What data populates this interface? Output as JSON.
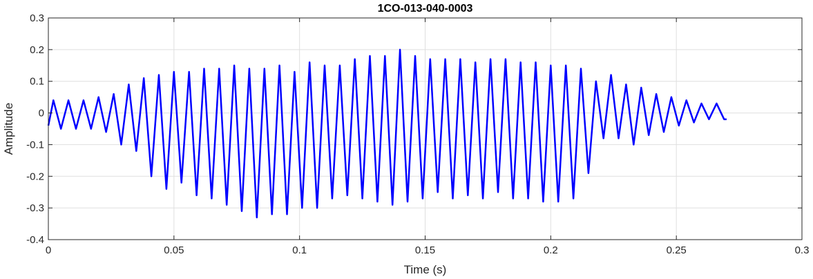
{
  "chart_data": {
    "type": "line",
    "title": "1CO-013-040-0003",
    "xlabel": "Time (s)",
    "ylabel": "Amplitude",
    "xlim": [
      0,
      0.3
    ],
    "ylim": [
      -0.4,
      0.3
    ],
    "xticks": [
      0,
      0.05,
      0.1,
      0.15,
      0.2,
      0.25,
      0.3
    ],
    "xtick_labels": [
      "0",
      "0.05",
      "0.1",
      "0.15",
      "0.2",
      "0.25",
      "0.3"
    ],
    "yticks": [
      -0.4,
      -0.3,
      -0.2,
      -0.1,
      0,
      0.1,
      0.2,
      0.3
    ],
    "ytick_labels": [
      "-0.4",
      "-0.3",
      "-0.2",
      "-0.1",
      "0",
      "0.1",
      "0.2",
      "0.3"
    ],
    "grid": true,
    "line_color": "#0000ff",
    "series": [
      {
        "x": [
          0.0,
          0.002,
          0.005,
          0.008,
          0.011,
          0.014,
          0.017,
          0.02,
          0.023,
          0.026,
          0.029,
          0.032,
          0.035,
          0.038,
          0.041,
          0.044,
          0.047,
          0.05,
          0.053,
          0.056,
          0.059,
          0.062,
          0.065,
          0.068,
          0.071,
          0.074,
          0.077,
          0.08,
          0.083,
          0.086,
          0.089,
          0.092,
          0.095,
          0.098,
          0.101,
          0.104,
          0.107,
          0.11,
          0.113,
          0.116,
          0.119,
          0.122,
          0.125,
          0.128,
          0.131,
          0.134,
          0.137,
          0.14,
          0.143,
          0.146,
          0.149,
          0.152,
          0.155,
          0.158,
          0.161,
          0.164,
          0.167,
          0.17,
          0.173,
          0.176,
          0.179,
          0.182,
          0.185,
          0.188,
          0.191,
          0.194,
          0.197,
          0.2,
          0.203,
          0.206,
          0.209,
          0.212,
          0.215,
          0.218,
          0.221,
          0.224,
          0.227,
          0.23,
          0.233,
          0.236,
          0.239,
          0.242,
          0.245,
          0.248,
          0.251,
          0.254,
          0.257,
          0.26,
          0.263,
          0.266,
          0.269,
          0.27
        ],
        "y": [
          -0.04,
          0.04,
          -0.05,
          0.04,
          -0.05,
          0.04,
          -0.05,
          0.05,
          -0.06,
          0.06,
          -0.1,
          0.09,
          -0.12,
          0.11,
          -0.2,
          0.12,
          -0.24,
          0.13,
          -0.22,
          0.13,
          -0.26,
          0.14,
          -0.27,
          0.14,
          -0.29,
          0.15,
          -0.31,
          0.14,
          -0.33,
          0.14,
          -0.32,
          0.15,
          -0.32,
          0.13,
          -0.3,
          0.16,
          -0.3,
          0.15,
          -0.27,
          0.15,
          -0.26,
          0.17,
          -0.27,
          0.18,
          -0.28,
          0.18,
          -0.29,
          0.2,
          -0.28,
          0.18,
          -0.27,
          0.17,
          -0.25,
          0.17,
          -0.27,
          0.17,
          -0.26,
          0.16,
          -0.27,
          0.17,
          -0.25,
          0.17,
          -0.27,
          0.16,
          -0.27,
          0.16,
          -0.28,
          0.15,
          -0.28,
          0.15,
          -0.27,
          0.14,
          -0.19,
          0.1,
          -0.08,
          0.12,
          -0.08,
          0.09,
          -0.1,
          0.08,
          -0.07,
          0.06,
          -0.06,
          0.05,
          -0.04,
          0.04,
          -0.03,
          0.03,
          -0.02,
          0.03,
          -0.02,
          -0.02
        ]
      }
    ]
  }
}
